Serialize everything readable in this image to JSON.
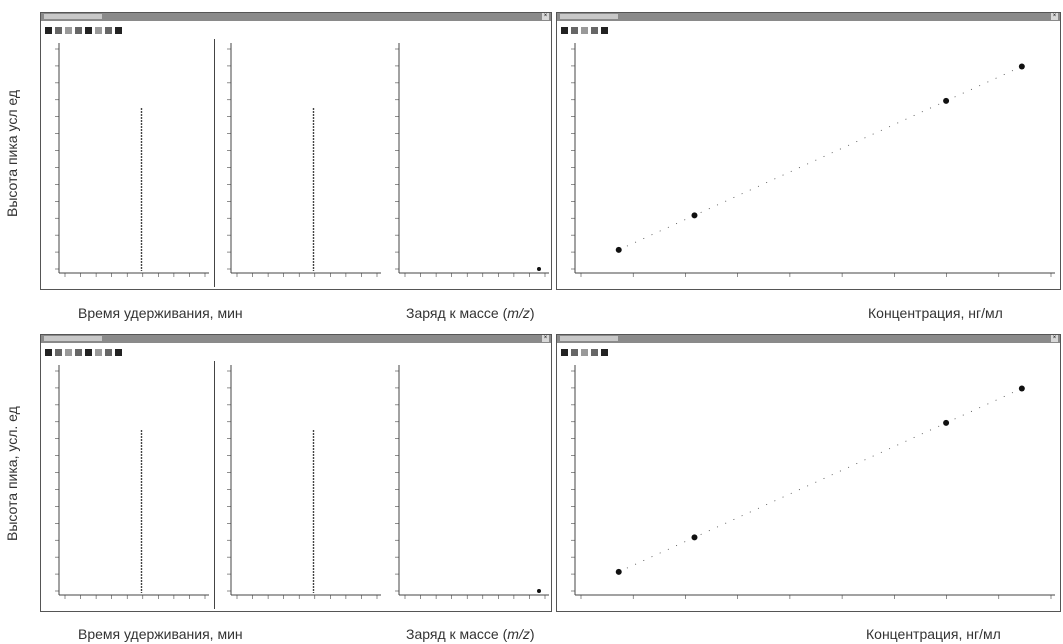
{
  "ylabels": [
    "Высота пика  усл  ед",
    "Высота пика, усл. ед"
  ],
  "captions": {
    "retention": "Время удерживания, мин",
    "mz_prefix": "Заряд к массе (",
    "mz_italic": "m/z",
    "mz_suffix": ")",
    "concentration": "Концентрация, нг/мл"
  },
  "colors": {
    "trace": "#444444",
    "point": "#111111",
    "window_border": "#555555",
    "titlebar": "#8a8a8a"
  },
  "icons": [
    "close-icon",
    "toolbar-icon"
  ],
  "chart_data": [
    {
      "type": "line",
      "panel": "top-left-chromatogram-1",
      "peak_x_fraction": 0.55,
      "title": "",
      "xlabel": "",
      "ylabel": ""
    },
    {
      "type": "line",
      "panel": "top-left-chromatogram-2",
      "peak_x_fraction": 0.55,
      "title": "",
      "xlabel": "",
      "ylabel": ""
    },
    {
      "type": "bar",
      "panel": "top-mass-spectrum",
      "title": "",
      "xlabel": "",
      "ylabel": ""
    },
    {
      "type": "scatter",
      "panel": "top-calibration",
      "title": "",
      "xlabel": "",
      "ylabel": "",
      "points": [
        {
          "x": 0.5,
          "y": 0.5
        },
        {
          "x": 1,
          "y": 1
        },
        {
          "x": 10,
          "y": 10
        },
        {
          "x": 20,
          "y": 20
        }
      ]
    },
    {
      "type": "line",
      "panel": "bottom-left-chromatogram-1",
      "peak_x_fraction": 0.55,
      "title": "",
      "xlabel": "",
      "ylabel": ""
    },
    {
      "type": "line",
      "panel": "bottom-left-chromatogram-2",
      "peak_x_fraction": 0.55,
      "title": "",
      "xlabel": "",
      "ylabel": ""
    },
    {
      "type": "bar",
      "panel": "bottom-mass-spectrum",
      "title": "",
      "xlabel": "",
      "ylabel": ""
    },
    {
      "type": "scatter",
      "panel": "bottom-calibration",
      "title": "",
      "xlabel": "",
      "ylabel": "",
      "points": [
        {
          "x": 0.5,
          "y": 0.5
        },
        {
          "x": 1,
          "y": 1
        },
        {
          "x": 10,
          "y": 10
        },
        {
          "x": 20,
          "y": 20
        }
      ]
    }
  ]
}
